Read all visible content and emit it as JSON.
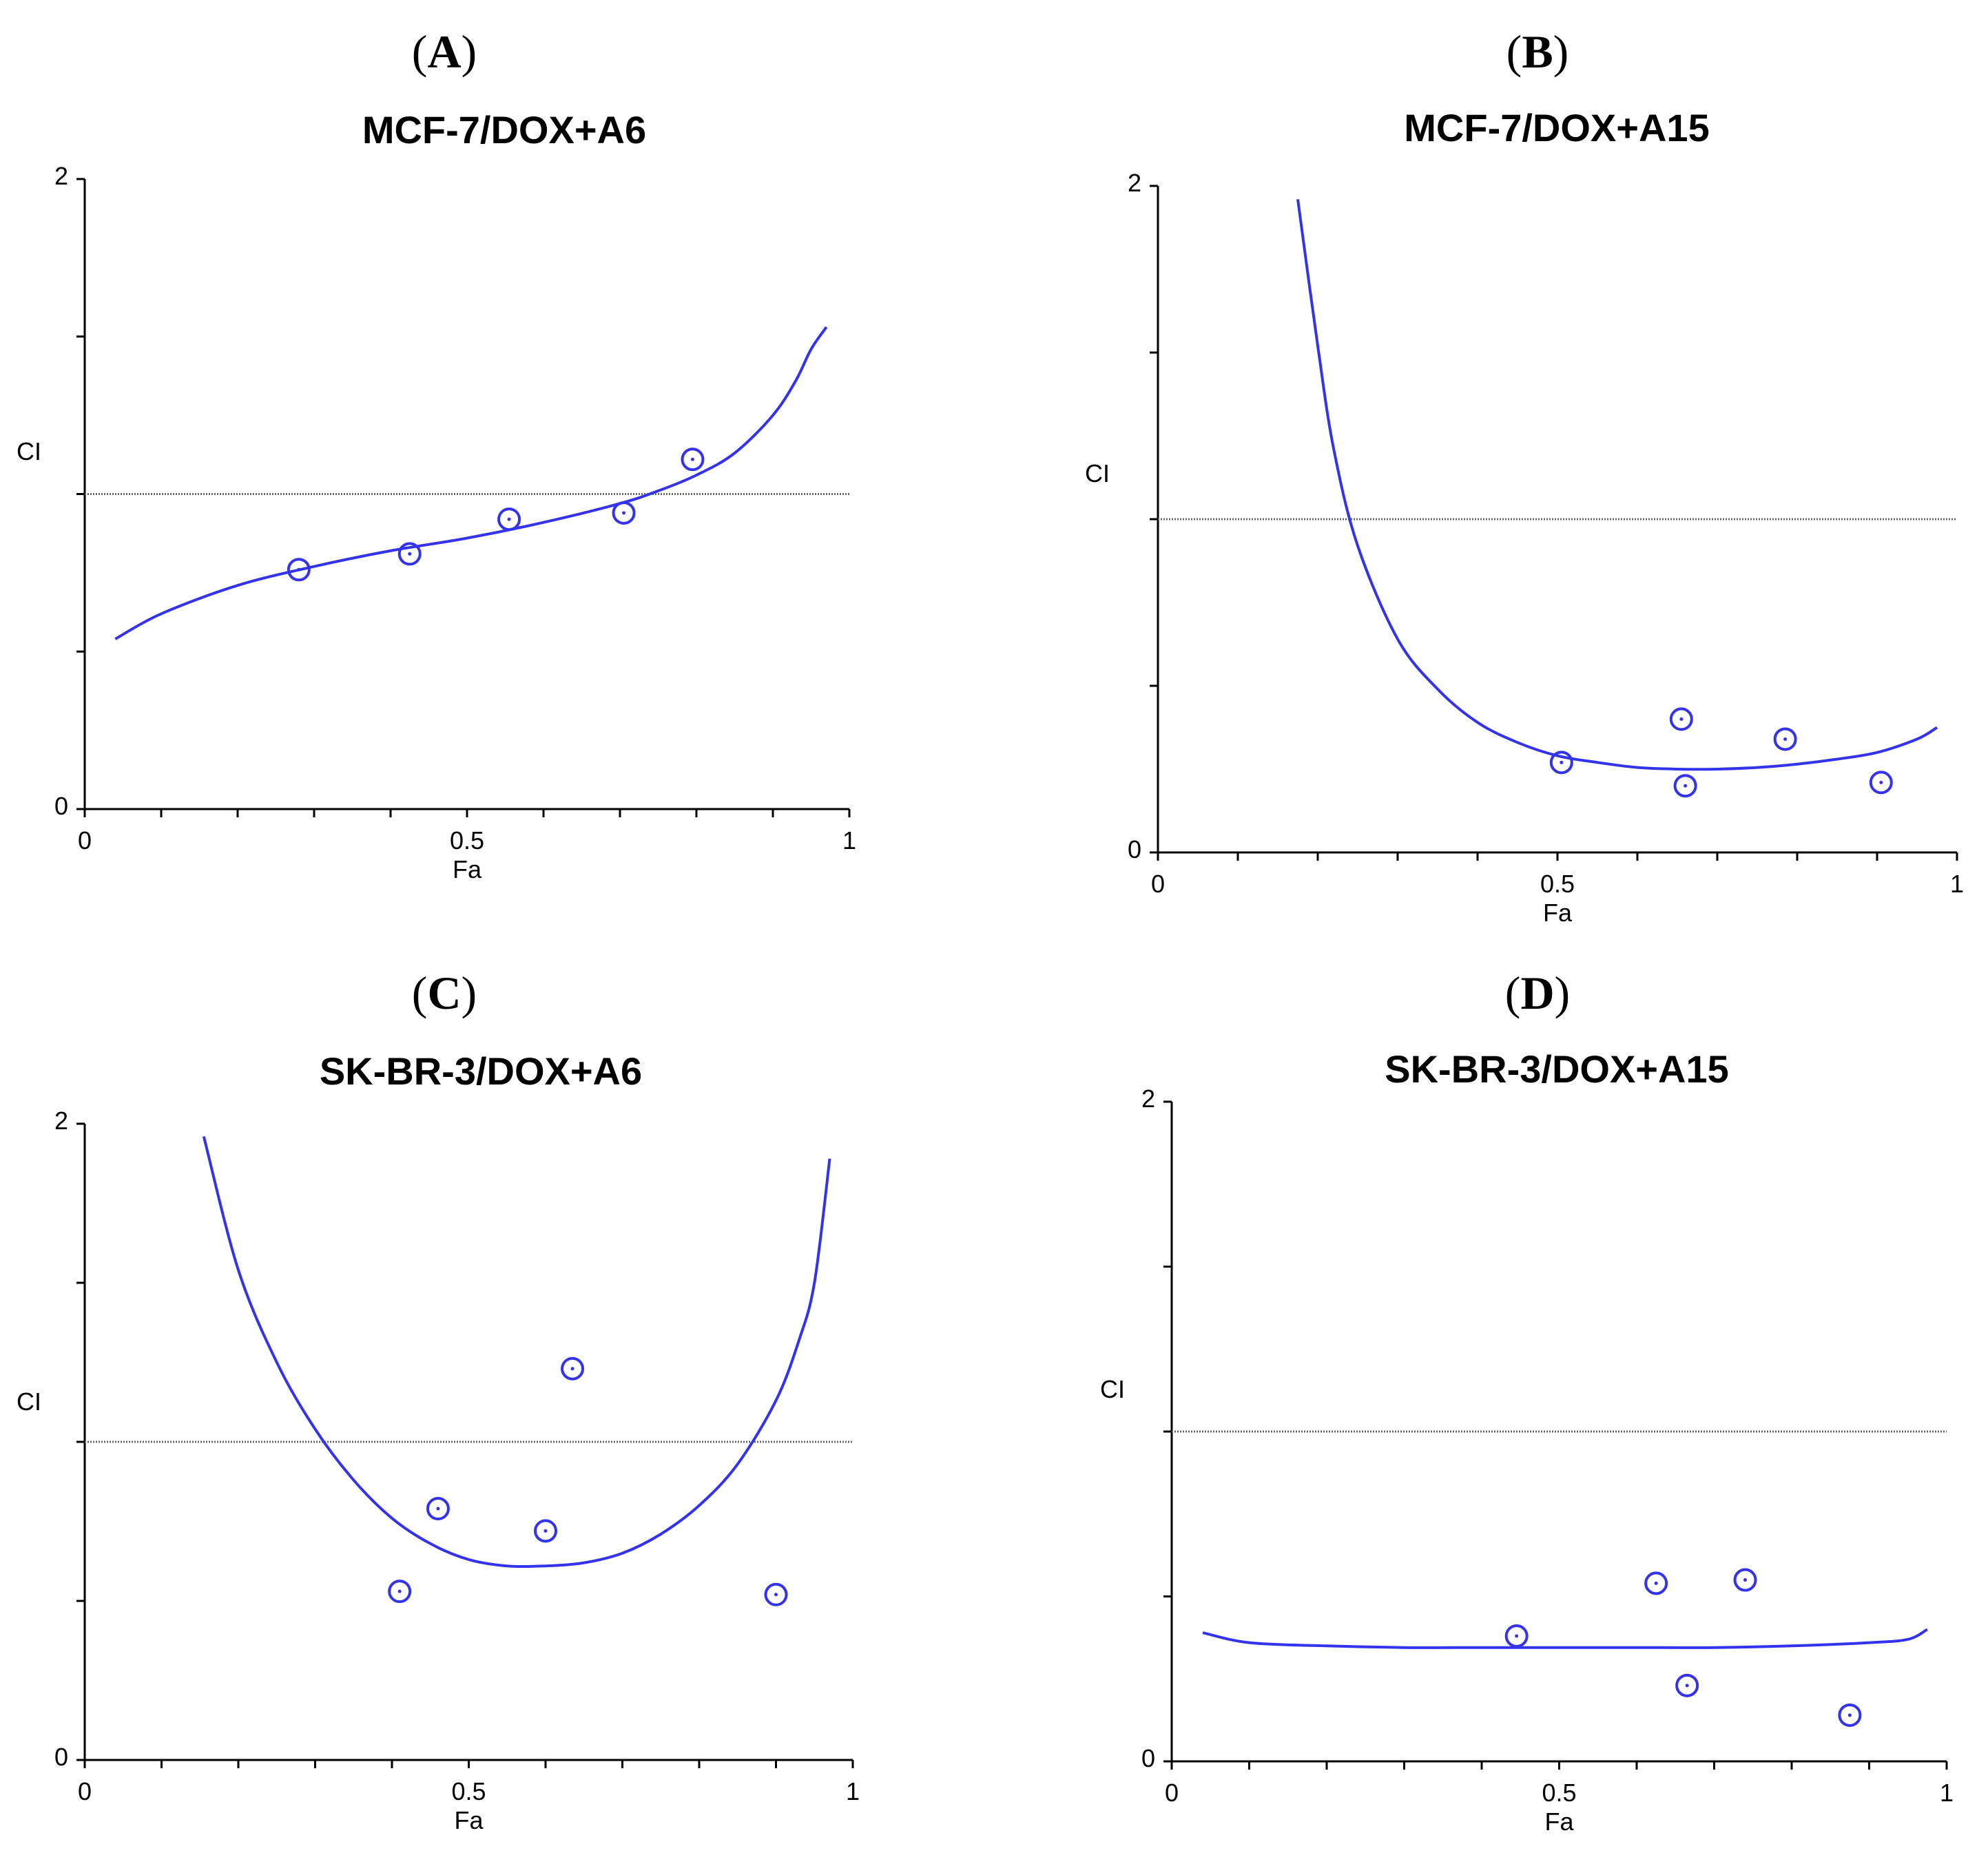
{
  "figure": {
    "background": "#ffffff",
    "curve_color": "#3333ee",
    "marker_color": "#3333ee",
    "reference_color": "#666666"
  },
  "chart_data": [
    {
      "panel": "(A)",
      "letter": "A",
      "type": "line",
      "title": "MCF-7/DOX+A6",
      "xlabel": "Fa",
      "ylabel": "CI",
      "xlim": [
        0,
        1
      ],
      "ylim": [
        0,
        2
      ],
      "xticks": [
        "0",
        "0.5",
        "1"
      ],
      "yticks": [
        "0",
        "2"
      ],
      "reference_line_ci": 1.0,
      "series": [
        {
          "name": "fitted curve",
          "style": "line",
          "x": [
            0.04,
            0.1,
            0.2,
            0.3,
            0.4,
            0.5,
            0.6,
            0.7,
            0.75,
            0.8,
            0.85,
            0.9,
            0.93,
            0.95,
            0.97
          ],
          "y": [
            0.54,
            0.62,
            0.71,
            0.77,
            0.82,
            0.86,
            0.91,
            0.97,
            1.01,
            1.06,
            1.13,
            1.25,
            1.36,
            1.46,
            1.53
          ]
        },
        {
          "name": "data points",
          "style": "scatter",
          "x": [
            0.28,
            0.425,
            0.555,
            0.705,
            0.795
          ],
          "y": [
            0.76,
            0.81,
            0.92,
            0.94,
            1.11
          ]
        }
      ]
    },
    {
      "panel": "(B)",
      "letter": "B",
      "type": "line",
      "title": "MCF-7/DOX+A15",
      "xlabel": "Fa",
      "ylabel": "CI",
      "xlim": [
        0,
        1
      ],
      "ylim": [
        0,
        2
      ],
      "xticks": [
        "0",
        "0.5",
        "1"
      ],
      "yticks": [
        "0",
        "2"
      ],
      "reference_line_ci": 1.0,
      "series": [
        {
          "name": "fitted curve",
          "style": "line",
          "x": [
            0.175,
            0.2,
            0.22,
            0.25,
            0.3,
            0.35,
            0.4,
            0.45,
            0.5,
            0.55,
            0.6,
            0.65,
            0.7,
            0.75,
            0.8,
            0.85,
            0.9,
            0.95,
            0.975
          ],
          "y": [
            1.96,
            1.52,
            1.21,
            0.92,
            0.64,
            0.49,
            0.39,
            0.33,
            0.29,
            0.27,
            0.255,
            0.25,
            0.25,
            0.255,
            0.265,
            0.28,
            0.3,
            0.34,
            0.375
          ]
        },
        {
          "name": "data points",
          "style": "scatter",
          "x": [
            0.505,
            0.655,
            0.66,
            0.785,
            0.905
          ],
          "y": [
            0.27,
            0.4,
            0.2,
            0.34,
            0.21
          ]
        }
      ]
    },
    {
      "panel": "(C)",
      "letter": "C",
      "type": "line",
      "title": "SK-BR-3/DOX+A6",
      "xlabel": "Fa",
      "ylabel": "CI",
      "xlim": [
        0,
        1
      ],
      "ylim": [
        0,
        2
      ],
      "xticks": [
        "0",
        "0.5",
        "1"
      ],
      "yticks": [
        "0",
        "2"
      ],
      "reference_line_ci": 1.0,
      "series": [
        {
          "name": "fitted curve",
          "style": "line",
          "x": [
            0.155,
            0.2,
            0.25,
            0.3,
            0.35,
            0.4,
            0.45,
            0.5,
            0.55,
            0.6,
            0.65,
            0.7,
            0.75,
            0.8,
            0.85,
            0.9,
            0.93,
            0.95,
            0.97
          ],
          "y": [
            1.96,
            1.54,
            1.25,
            1.04,
            0.88,
            0.76,
            0.68,
            0.63,
            0.61,
            0.61,
            0.62,
            0.65,
            0.71,
            0.8,
            0.93,
            1.13,
            1.32,
            1.5,
            1.89
          ]
        },
        {
          "name": "data points",
          "style": "scatter",
          "x": [
            0.41,
            0.46,
            0.6,
            0.635,
            0.9
          ],
          "y": [
            0.53,
            0.79,
            0.72,
            1.23,
            0.52
          ]
        }
      ]
    },
    {
      "panel": "(D)",
      "letter": "D",
      "type": "line",
      "title": "SK-BR-3/DOX+A15",
      "xlabel": "Fa",
      "ylabel": "CI",
      "xlim": [
        0,
        1
      ],
      "ylim": [
        0,
        2
      ],
      "xticks": [
        "0",
        "0.5",
        "1"
      ],
      "yticks": [
        "0",
        "2"
      ],
      "reference_line_ci": 1.0,
      "series": [
        {
          "name": "fitted curve",
          "style": "line",
          "x": [
            0.04,
            0.1,
            0.2,
            0.3,
            0.4,
            0.5,
            0.6,
            0.7,
            0.8,
            0.9,
            0.95,
            0.975
          ],
          "y": [
            0.39,
            0.36,
            0.35,
            0.345,
            0.345,
            0.345,
            0.345,
            0.345,
            0.35,
            0.36,
            0.37,
            0.4
          ]
        },
        {
          "name": "data points",
          "style": "scatter",
          "x": [
            0.445,
            0.625,
            0.665,
            0.74,
            0.875
          ],
          "y": [
            0.38,
            0.54,
            0.23,
            0.55,
            0.14
          ]
        }
      ]
    }
  ]
}
